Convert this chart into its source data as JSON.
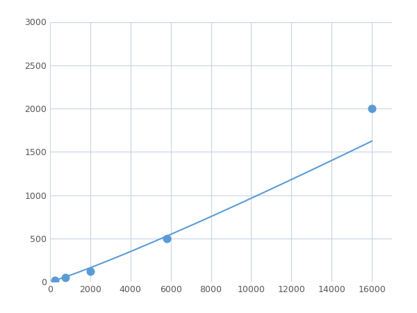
{
  "x": [
    250,
    750,
    2000,
    5800,
    16000
  ],
  "y": [
    20,
    50,
    120,
    500,
    2000
  ],
  "line_color": "#5b9bd5",
  "marker_color": "#5b9bd5",
  "marker_size": 5,
  "line_width": 1.5,
  "xlim": [
    0,
    17000
  ],
  "ylim": [
    0,
    3000
  ],
  "xticks": [
    0,
    2000,
    4000,
    6000,
    8000,
    10000,
    12000,
    14000,
    16000
  ],
  "yticks": [
    0,
    500,
    1000,
    1500,
    2000,
    2500,
    3000
  ],
  "grid_color": "#c8d4e0",
  "background_color": "#ffffff",
  "fig_background": "#ffffff"
}
